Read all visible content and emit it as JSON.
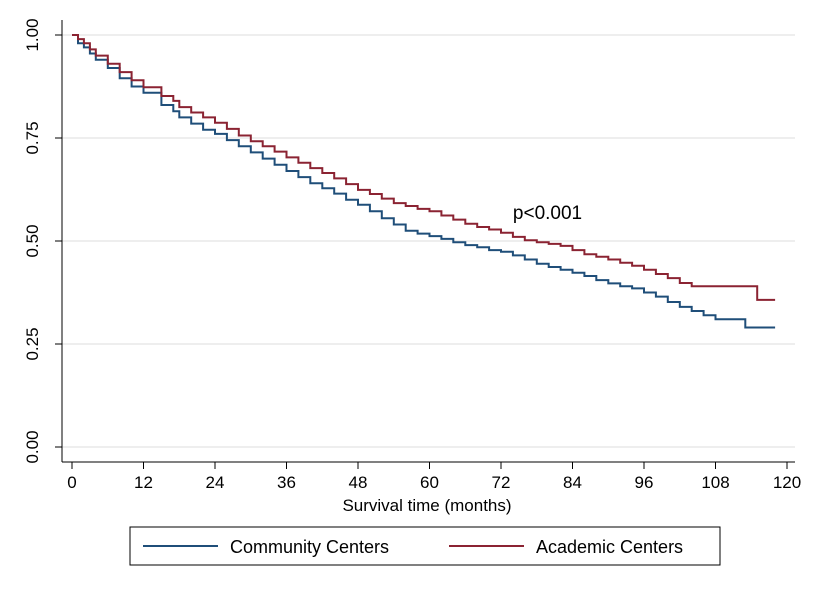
{
  "chart_data": {
    "type": "line",
    "title": "",
    "xlabel": "Survival time (months)",
    "ylabel": "",
    "xlim": [
      0,
      120
    ],
    "ylim": [
      0,
      1
    ],
    "x_ticks": [
      "0",
      "12",
      "24",
      "36",
      "48",
      "60",
      "72",
      "84",
      "96",
      "108",
      "120"
    ],
    "y_ticks": [
      "0.00",
      "0.25",
      "0.50",
      "0.75",
      "1.00"
    ],
    "grid": "horizontal",
    "legend_position": "bottom",
    "annotation": {
      "text": "p<0.001",
      "x": 74,
      "y": 0.57
    },
    "series": [
      {
        "name": "Community Centers",
        "color": "#1f4e79",
        "x": [
          0,
          1,
          2,
          3,
          4,
          6,
          8,
          10,
          12,
          15,
          17,
          18,
          20,
          22,
          24,
          26,
          28,
          30,
          32,
          34,
          36,
          38,
          40,
          42,
          44,
          46,
          48,
          50,
          52,
          54,
          56,
          58,
          60,
          62,
          64,
          66,
          68,
          70,
          72,
          74,
          76,
          78,
          80,
          82,
          84,
          86,
          88,
          90,
          92,
          94,
          96,
          98,
          100,
          102,
          104,
          106,
          108,
          110,
          112,
          113,
          114,
          116,
          118
        ],
        "y": [
          1.0,
          0.98,
          0.97,
          0.955,
          0.94,
          0.92,
          0.895,
          0.875,
          0.86,
          0.83,
          0.815,
          0.8,
          0.785,
          0.77,
          0.76,
          0.745,
          0.73,
          0.715,
          0.7,
          0.685,
          0.67,
          0.655,
          0.64,
          0.628,
          0.615,
          0.6,
          0.588,
          0.572,
          0.555,
          0.54,
          0.525,
          0.518,
          0.512,
          0.505,
          0.497,
          0.49,
          0.485,
          0.478,
          0.474,
          0.465,
          0.455,
          0.445,
          0.437,
          0.43,
          0.423,
          0.415,
          0.405,
          0.397,
          0.39,
          0.385,
          0.375,
          0.365,
          0.352,
          0.34,
          0.33,
          0.32,
          0.31,
          0.31,
          0.31,
          0.29,
          0.29,
          0.29,
          0.29
        ]
      },
      {
        "name": "Academic Centers",
        "color": "#8b2332",
        "x": [
          0,
          1,
          2,
          3,
          4,
          6,
          8,
          10,
          12,
          15,
          17,
          18,
          20,
          22,
          24,
          26,
          28,
          30,
          32,
          34,
          36,
          38,
          40,
          42,
          44,
          46,
          48,
          50,
          52,
          54,
          56,
          58,
          60,
          62,
          64,
          66,
          68,
          70,
          72,
          74,
          76,
          78,
          80,
          82,
          84,
          86,
          88,
          90,
          92,
          94,
          96,
          98,
          100,
          102,
          104,
          106,
          108,
          110,
          112,
          114,
          115,
          116,
          118
        ],
        "y": [
          1.0,
          0.99,
          0.98,
          0.965,
          0.95,
          0.93,
          0.91,
          0.89,
          0.873,
          0.852,
          0.84,
          0.825,
          0.812,
          0.8,
          0.787,
          0.772,
          0.756,
          0.742,
          0.73,
          0.717,
          0.703,
          0.69,
          0.677,
          0.665,
          0.652,
          0.638,
          0.624,
          0.614,
          0.603,
          0.592,
          0.585,
          0.578,
          0.572,
          0.562,
          0.552,
          0.542,
          0.534,
          0.528,
          0.52,
          0.51,
          0.502,
          0.497,
          0.493,
          0.488,
          0.478,
          0.468,
          0.462,
          0.455,
          0.447,
          0.44,
          0.43,
          0.42,
          0.41,
          0.398,
          0.39,
          0.39,
          0.39,
          0.39,
          0.39,
          0.39,
          0.357,
          0.357,
          0.357
        ]
      }
    ]
  }
}
